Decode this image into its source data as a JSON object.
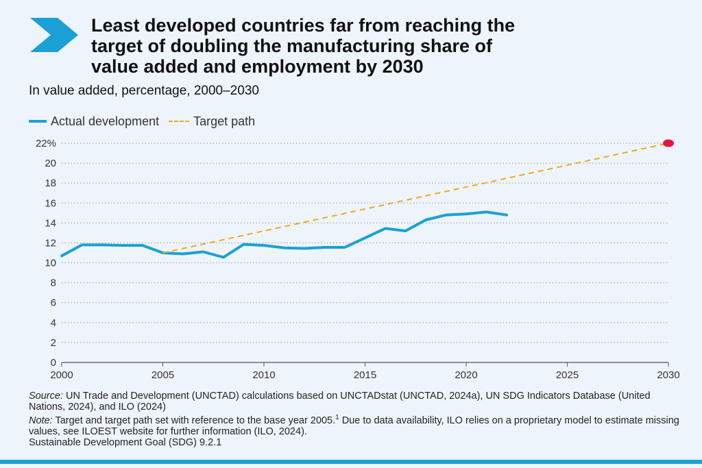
{
  "header": {
    "title": "Least developed countries far from reaching the\ntarget of doubling the manufacturing share of\nvalue added and employment by 2030",
    "subtitle": "In value added, percentage, 2000–2030"
  },
  "legend": {
    "actual_label": "Actual development",
    "target_label": "Target path"
  },
  "colors": {
    "actual": "#1aa0d6",
    "target": "#f2a71b",
    "target_point": "#e8143c",
    "chevron": "#1aa0d6"
  },
  "chart_data": {
    "type": "line",
    "title": "Least developed countries far from reaching the target of doubling the manufacturing share of value added and employment by 2030",
    "subtitle": "In value added, percentage, 2000–2030",
    "xlabel": "",
    "ylabel": "",
    "xlim": [
      2000,
      2030
    ],
    "ylim": [
      0,
      22
    ],
    "x_ticks": [
      2000,
      2005,
      2010,
      2015,
      2020,
      2025,
      2030
    ],
    "y_ticks": [
      0,
      2,
      4,
      6,
      8,
      10,
      12,
      14,
      16,
      18,
      20,
      22
    ],
    "y_tick_labels": [
      "0",
      "2",
      "4",
      "6",
      "8",
      "10",
      "12",
      "14",
      "16",
      "18",
      "20",
      "22%"
    ],
    "grid": "horizontal dotted",
    "legend_position": "top-left",
    "series": [
      {
        "name": "Actual development",
        "style": "solid",
        "x": [
          2000,
          2001,
          2002,
          2003,
          2004,
          2005,
          2006,
          2007,
          2008,
          2009,
          2010,
          2011,
          2012,
          2013,
          2014,
          2015,
          2016,
          2017,
          2018,
          2019,
          2020,
          2021,
          2022
        ],
        "values": [
          10.7,
          11.8,
          11.8,
          11.75,
          11.75,
          11.0,
          10.9,
          11.1,
          10.55,
          11.85,
          11.75,
          11.5,
          11.45,
          11.55,
          11.55,
          12.5,
          13.45,
          13.2,
          14.3,
          14.8,
          14.9,
          15.1,
          14.8
        ]
      },
      {
        "name": "Target path",
        "style": "dashed",
        "x": [
          2005,
          2030
        ],
        "values": [
          11.0,
          22.0
        ]
      }
    ],
    "annotations": [
      {
        "type": "target-point",
        "x": 2030,
        "y": 22.0
      }
    ]
  },
  "notes": {
    "source_label": "Source:",
    "source_text": " UN Trade and Development (UNCTAD) calculations based on UNCTADstat (UNCTAD, 2024a), UN SDG Indicators Database (United Nations, 2024), and ILO (2024)",
    "note_label": "Note:",
    "note_text_1": " Target and target path set with reference to the base year 2005.",
    "note_sup": "1",
    "note_text_2": " Due to data availability, ILO relies on a proprietary model to estimate missing values, see ILOEST website for further information (ILO, 2024).",
    "note_text_3": "Sustainable Development Goal (SDG) 9.2.1"
  }
}
